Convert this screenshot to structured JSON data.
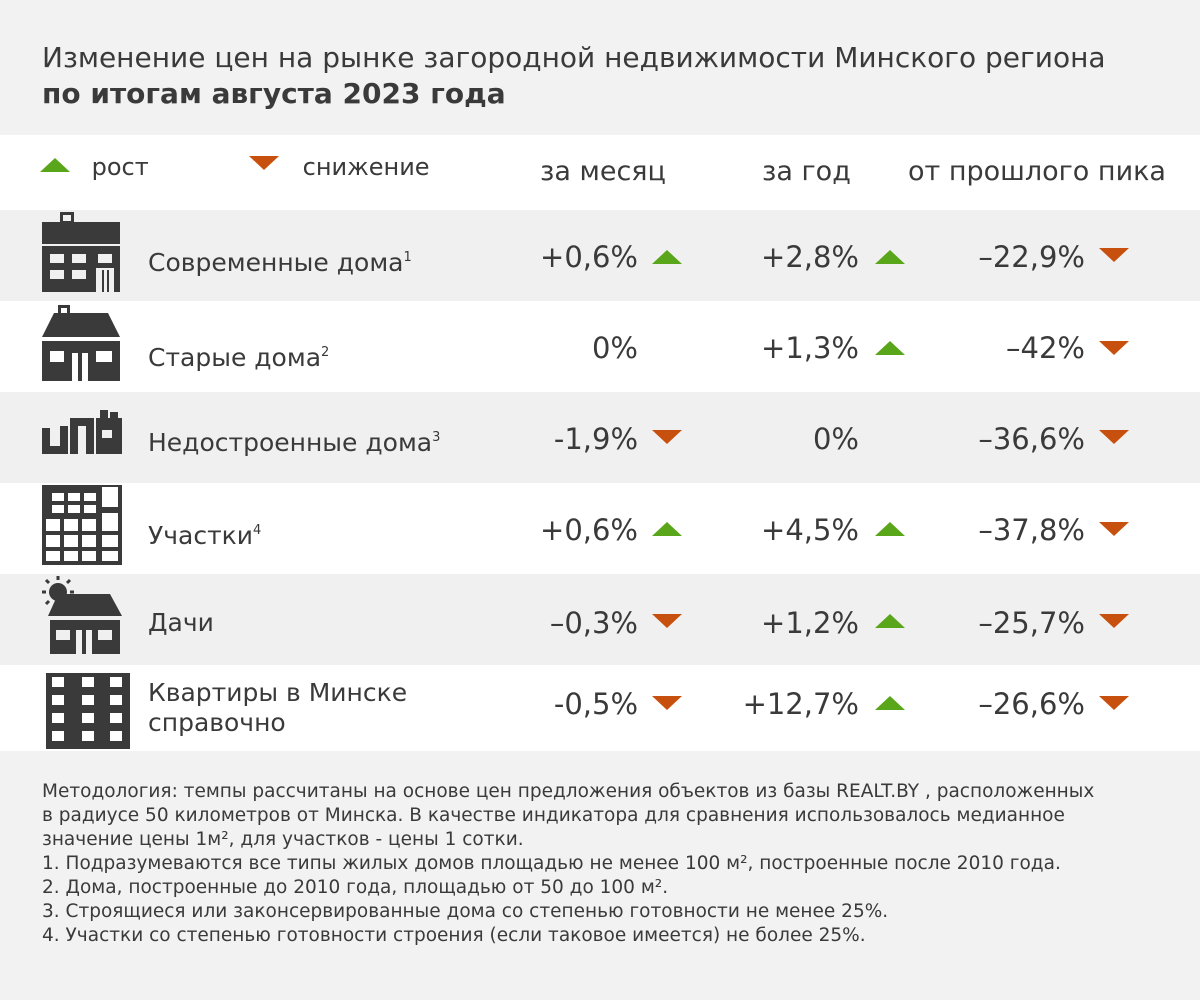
{
  "title": {
    "line1": "Изменение цен на рынке загородной недвижимости Минского региона",
    "line2": "по итогам августа 2023 года"
  },
  "legend": {
    "up": "рост",
    "down": "снижение"
  },
  "columns": {
    "month": "за месяц",
    "year": "за год",
    "peak": "от прошлого пика"
  },
  "colors": {
    "up": "#5aa61a",
    "down": "#c8500f",
    "icon": "#3a3a3a"
  },
  "chart_data": {
    "type": "table",
    "columns": [
      "за месяц",
      "за год",
      "от прошлого пика"
    ],
    "rows": [
      {
        "label": "Современные дома",
        "sup": "1",
        "icon": "modern-house-icon",
        "month": "+0,6%",
        "month_dir": "up",
        "year": "+2,8%",
        "year_dir": "up",
        "peak": "–22,9%",
        "peak_dir": "down"
      },
      {
        "label": "Старые дома",
        "sup": "2",
        "icon": "old-house-icon",
        "month": "0%",
        "month_dir": "",
        "year": "+1,3%",
        "year_dir": "up",
        "peak": "–42%",
        "peak_dir": "down"
      },
      {
        "label": "Недостроенные дома",
        "sup": "3",
        "icon": "unfinished-house-icon",
        "month": "-1,9%",
        "month_dir": "down",
        "year": "0%",
        "year_dir": "",
        "peak": "–36,6%",
        "peak_dir": "down"
      },
      {
        "label": "Участки",
        "sup": "4",
        "icon": "land-plot-icon",
        "month": "+0,6%",
        "month_dir": "up",
        "year": "+4,5%",
        "year_dir": "up",
        "peak": "–37,8%",
        "peak_dir": "down"
      },
      {
        "label": "Дачи",
        "sup": "",
        "icon": "dacha-icon",
        "month": "–0,3%",
        "month_dir": "down",
        "year": "+1,2%",
        "year_dir": "up",
        "peak": "–25,7%",
        "peak_dir": "down"
      },
      {
        "label": "Квартиры в Минске",
        "label2": "справочно",
        "sup": "",
        "icon": "apartment-building-icon",
        "month": "-0,5%",
        "month_dir": "down",
        "year": "+12,7%",
        "year_dir": "up",
        "peak": "–26,6%",
        "peak_dir": "down"
      }
    ]
  },
  "notes": {
    "methodology_1": "Методология: темпы рассчитаны на основе цен предложения объектов из базы REALT.BY , расположенных",
    "methodology_2": "в радиусе 50 километров от Минска. В качестве индикатора для сравнения использовалось медианное",
    "methodology_3": "значение цены 1м², для участков  - цены 1 сотки.",
    "n1": "1. Подразумеваются все типы жилых домов площадью не менее 100 м², построенные после 2010 года.",
    "n2": "2. Дома, построенные до 2010 года, площадью от 50 до 100 м².",
    "n3": "3. Строящиеся или законсервированные дома со степенью готовности не менее 25%.",
    "n4": "4. Участки со степенью готовности строения (если таковое имеется) не более 25%."
  }
}
